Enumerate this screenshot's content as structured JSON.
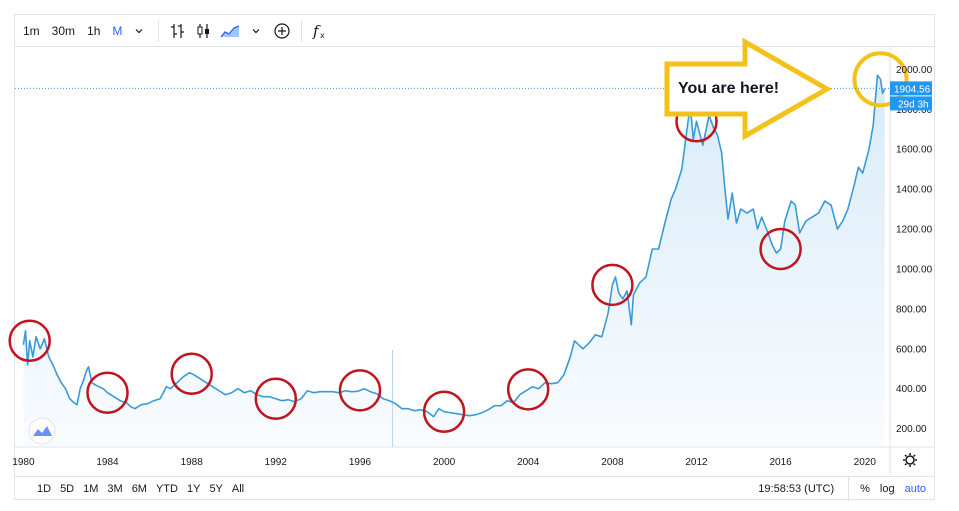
{
  "toolbar": {
    "intervals": [
      "1m",
      "30m",
      "1h",
      "M"
    ],
    "active_interval": "M",
    "fx_label": "fx"
  },
  "bottom_bar": {
    "ranges": [
      "1D",
      "5D",
      "1M",
      "3M",
      "6M",
      "YTD",
      "1Y",
      "5Y",
      "All"
    ],
    "time": "19:58:53 (UTC)",
    "percent": "%",
    "log": "log",
    "auto": "auto"
  },
  "colors": {
    "line": "#3a9ad9",
    "area": "#d6eaf8",
    "circle": "#c0141e",
    "arrow": "#f2c21b",
    "accent": "#2962ff"
  },
  "annotation": "You are here!",
  "chart_data": {
    "type": "area",
    "title": "",
    "xlabel": "",
    "ylabel": "",
    "xlim": [
      1979.6,
      2021.2
    ],
    "ylim": [
      108,
      2112
    ],
    "x_ticks": [
      "1980",
      "1984",
      "1988",
      "1992",
      "1996",
      "2000",
      "2004",
      "2008",
      "2012",
      "2016",
      "2020"
    ],
    "y_ticks": [
      "200.00",
      "400.00",
      "600.00",
      "800.00",
      "1000.00",
      "1200.00",
      "1400.00",
      "1600.00",
      "1800.00",
      "2000.00"
    ],
    "last_price": "1904.56",
    "countdown": "29d 3h",
    "series": [
      {
        "points": [
          [
            1980.0,
            620
          ],
          [
            1980.1,
            690
          ],
          [
            1980.2,
            520
          ],
          [
            1980.3,
            640
          ],
          [
            1980.45,
            560
          ],
          [
            1980.6,
            660
          ],
          [
            1980.8,
            600
          ],
          [
            1981.0,
            650
          ],
          [
            1981.2,
            560
          ],
          [
            1981.4,
            520
          ],
          [
            1981.6,
            470
          ],
          [
            1981.8,
            430
          ],
          [
            1982.0,
            400
          ],
          [
            1982.2,
            350
          ],
          [
            1982.4,
            330
          ],
          [
            1982.55,
            320
          ],
          [
            1982.7,
            400
          ],
          [
            1982.85,
            440
          ],
          [
            1983.0,
            490
          ],
          [
            1983.1,
            510
          ],
          [
            1983.25,
            430
          ],
          [
            1983.4,
            420
          ],
          [
            1983.6,
            410
          ],
          [
            1983.8,
            400
          ],
          [
            1984.0,
            380
          ],
          [
            1984.3,
            360
          ],
          [
            1984.6,
            340
          ],
          [
            1984.9,
            330
          ],
          [
            1985.1,
            310
          ],
          [
            1985.3,
            300
          ],
          [
            1985.6,
            320
          ],
          [
            1985.9,
            325
          ],
          [
            1986.2,
            340
          ],
          [
            1986.5,
            350
          ],
          [
            1986.8,
            410
          ],
          [
            1987.0,
            400
          ],
          [
            1987.3,
            430
          ],
          [
            1987.6,
            460
          ],
          [
            1987.9,
            480
          ],
          [
            1988.1,
            470
          ],
          [
            1988.4,
            450
          ],
          [
            1988.7,
            430
          ],
          [
            1989.0,
            410
          ],
          [
            1989.3,
            390
          ],
          [
            1989.6,
            370
          ],
          [
            1989.9,
            380
          ],
          [
            1990.2,
            400
          ],
          [
            1990.5,
            380
          ],
          [
            1990.8,
            390
          ],
          [
            1991.1,
            370
          ],
          [
            1991.4,
            360
          ],
          [
            1991.7,
            360
          ],
          [
            1992.0,
            350
          ],
          [
            1992.3,
            340
          ],
          [
            1992.6,
            345
          ],
          [
            1992.9,
            335
          ],
          [
            1993.2,
            350
          ],
          [
            1993.5,
            390
          ],
          [
            1993.8,
            380
          ],
          [
            1994.1,
            385
          ],
          [
            1994.4,
            385
          ],
          [
            1994.7,
            385
          ],
          [
            1995.0,
            380
          ],
          [
            1995.3,
            390
          ],
          [
            1995.6,
            385
          ],
          [
            1995.9,
            387
          ],
          [
            1996.2,
            400
          ],
          [
            1996.5,
            385
          ],
          [
            1996.8,
            375
          ],
          [
            1997.1,
            350
          ],
          [
            1997.4,
            340
          ],
          [
            1997.7,
            325
          ],
          [
            1998.0,
            300
          ],
          [
            1998.3,
            300
          ],
          [
            1998.6,
            290
          ],
          [
            1998.9,
            295
          ],
          [
            1999.2,
            285
          ],
          [
            1999.5,
            260
          ],
          [
            1999.75,
            300
          ],
          [
            2000.0,
            285
          ],
          [
            2000.3,
            280
          ],
          [
            2000.6,
            275
          ],
          [
            2000.9,
            270
          ],
          [
            2001.2,
            265
          ],
          [
            2001.5,
            270
          ],
          [
            2001.8,
            280
          ],
          [
            2002.1,
            295
          ],
          [
            2002.4,
            315
          ],
          [
            2002.7,
            315
          ],
          [
            2003.0,
            340
          ],
          [
            2003.3,
            330
          ],
          [
            2003.6,
            370
          ],
          [
            2003.9,
            390
          ],
          [
            2004.2,
            410
          ],
          [
            2004.5,
            400
          ],
          [
            2004.8,
            430
          ],
          [
            2005.1,
            425
          ],
          [
            2005.4,
            430
          ],
          [
            2005.7,
            470
          ],
          [
            2006.0,
            560
          ],
          [
            2006.2,
            640
          ],
          [
            2006.4,
            620
          ],
          [
            2006.6,
            600
          ],
          [
            2006.9,
            630
          ],
          [
            2007.2,
            670
          ],
          [
            2007.5,
            660
          ],
          [
            2007.8,
            780
          ],
          [
            2008.0,
            920
          ],
          [
            2008.15,
            960
          ],
          [
            2008.3,
            880
          ],
          [
            2008.5,
            850
          ],
          [
            2008.7,
            890
          ],
          [
            2008.9,
            720
          ],
          [
            2009.0,
            870
          ],
          [
            2009.3,
            930
          ],
          [
            2009.6,
            960
          ],
          [
            2009.9,
            1100
          ],
          [
            2010.2,
            1100
          ],
          [
            2010.5,
            1230
          ],
          [
            2010.8,
            1350
          ],
          [
            2011.0,
            1400
          ],
          [
            2011.3,
            1500
          ],
          [
            2011.55,
            1700
          ],
          [
            2011.7,
            1820
          ],
          [
            2011.85,
            1650
          ],
          [
            2012.0,
            1740
          ],
          [
            2012.3,
            1620
          ],
          [
            2012.6,
            1770
          ],
          [
            2012.8,
            1710
          ],
          [
            2013.0,
            1670
          ],
          [
            2013.2,
            1580
          ],
          [
            2013.35,
            1400
          ],
          [
            2013.5,
            1250
          ],
          [
            2013.7,
            1380
          ],
          [
            2013.9,
            1230
          ],
          [
            2014.1,
            1300
          ],
          [
            2014.4,
            1280
          ],
          [
            2014.7,
            1300
          ],
          [
            2014.9,
            1200
          ],
          [
            2015.1,
            1260
          ],
          [
            2015.4,
            1180
          ],
          [
            2015.6,
            1120
          ],
          [
            2015.8,
            1080
          ],
          [
            2016.0,
            1100
          ],
          [
            2016.2,
            1240
          ],
          [
            2016.5,
            1340
          ],
          [
            2016.7,
            1320
          ],
          [
            2016.9,
            1180
          ],
          [
            2017.2,
            1240
          ],
          [
            2017.5,
            1260
          ],
          [
            2017.8,
            1280
          ],
          [
            2018.1,
            1340
          ],
          [
            2018.4,
            1320
          ],
          [
            2018.7,
            1200
          ],
          [
            2018.95,
            1240
          ],
          [
            2019.2,
            1300
          ],
          [
            2019.5,
            1420
          ],
          [
            2019.7,
            1510
          ],
          [
            2019.9,
            1480
          ],
          [
            2020.2,
            1600
          ],
          [
            2020.4,
            1720
          ],
          [
            2020.6,
            1970
          ],
          [
            2020.75,
            1950
          ],
          [
            2020.85,
            1880
          ],
          [
            2020.95,
            1904
          ]
        ]
      }
    ],
    "circled_points": [
      1980.3,
      1984.0,
      1988.0,
      1992.0,
      1996.0,
      2000.0,
      2004.0,
      2008.0,
      2012.0,
      2016.0,
      2020.75
    ]
  }
}
